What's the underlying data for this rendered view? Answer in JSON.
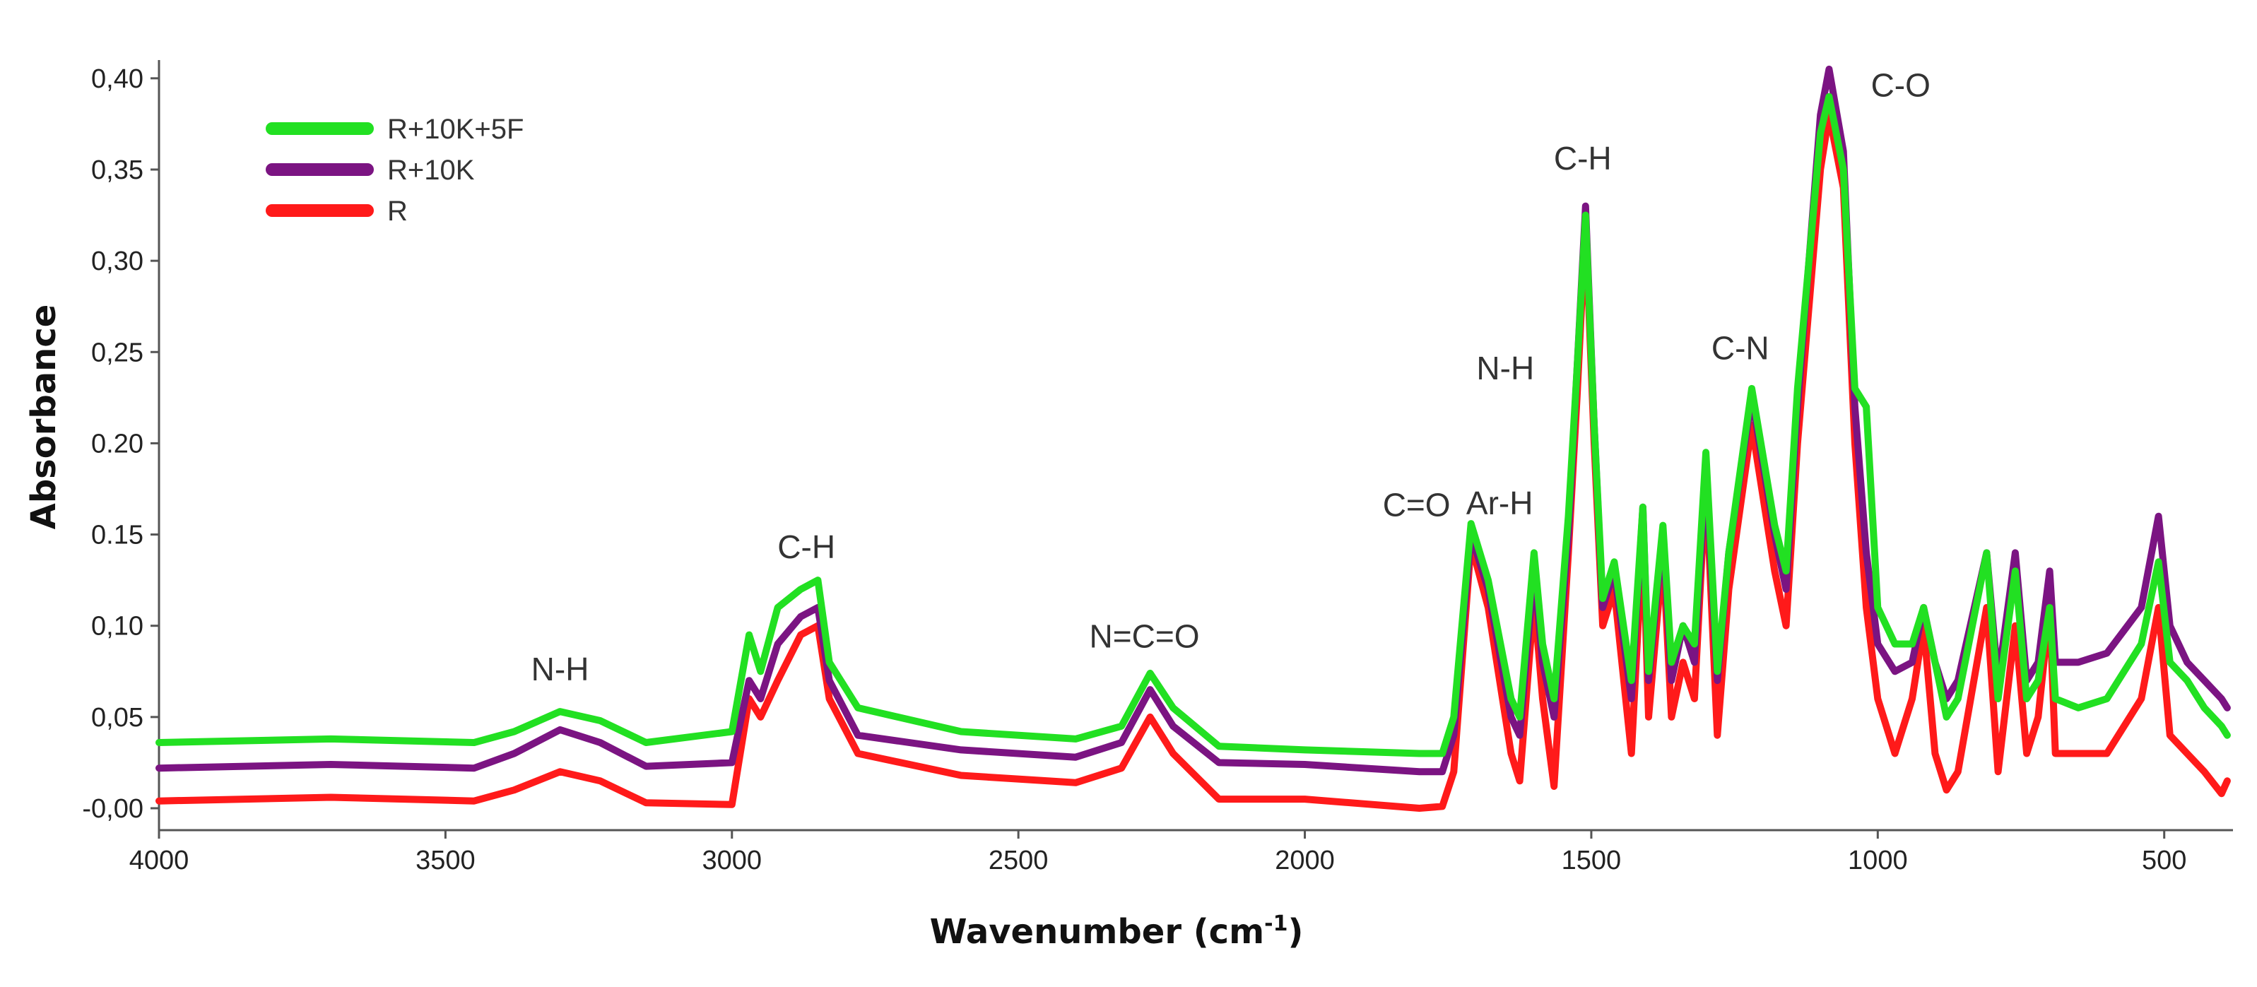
{
  "chart_data": {
    "type": "line",
    "xlabel": "Wavenumber (cm",
    "xlabel_sup": "-1",
    "xlabel_close": ")",
    "ylabel": "Absorbance",
    "xlim": [
      4000,
      380
    ],
    "ylim": [
      -0.012,
      0.41
    ],
    "x_reversed": true,
    "grid": false,
    "legend_position": "top-left",
    "x_ticks": [
      {
        "value": 4000,
        "label": "4000"
      },
      {
        "value": 3500,
        "label": "3500"
      },
      {
        "value": 3000,
        "label": "3000"
      },
      {
        "value": 2500,
        "label": "2500"
      },
      {
        "value": 2000,
        "label": "2000"
      },
      {
        "value": 1500,
        "label": "1500"
      },
      {
        "value": 1000,
        "label": "1000"
      },
      {
        "value": 500,
        "label": "500"
      }
    ],
    "y_ticks": [
      {
        "value": 0.0,
        "label": "-0,00"
      },
      {
        "value": 0.05,
        "label": "0,05"
      },
      {
        "value": 0.1,
        "label": "0,10"
      },
      {
        "value": 0.15,
        "label": "0.15"
      },
      {
        "value": 0.2,
        "label": "0.20"
      },
      {
        "value": 0.25,
        "label": "0,25"
      },
      {
        "value": 0.3,
        "label": "0,30"
      },
      {
        "value": 0.35,
        "label": "0,35"
      },
      {
        "value": 0.4,
        "label": "0,40"
      }
    ],
    "series": [
      {
        "name": "R",
        "color": "#ff1a1a",
        "points": [
          [
            4000,
            0.004
          ],
          [
            3700,
            0.006
          ],
          [
            3450,
            0.004
          ],
          [
            3380,
            0.01
          ],
          [
            3300,
            0.02
          ],
          [
            3230,
            0.015
          ],
          [
            3150,
            0.003
          ],
          [
            3000,
            0.002
          ],
          [
            2970,
            0.06
          ],
          [
            2950,
            0.05
          ],
          [
            2920,
            0.07
          ],
          [
            2880,
            0.095
          ],
          [
            2850,
            0.1
          ],
          [
            2830,
            0.06
          ],
          [
            2780,
            0.03
          ],
          [
            2600,
            0.018
          ],
          [
            2400,
            0.014
          ],
          [
            2320,
            0.022
          ],
          [
            2270,
            0.05
          ],
          [
            2230,
            0.03
          ],
          [
            2150,
            0.005
          ],
          [
            2000,
            0.005
          ],
          [
            1800,
            0.0
          ],
          [
            1760,
            0.001
          ],
          [
            1740,
            0.02
          ],
          [
            1710,
            0.145
          ],
          [
            1680,
            0.11
          ],
          [
            1640,
            0.03
          ],
          [
            1625,
            0.015
          ],
          [
            1600,
            0.115
          ],
          [
            1585,
            0.06
          ],
          [
            1565,
            0.012
          ],
          [
            1540,
            0.14
          ],
          [
            1525,
            0.225
          ],
          [
            1510,
            0.32
          ],
          [
            1495,
            0.2
          ],
          [
            1480,
            0.1
          ],
          [
            1460,
            0.12
          ],
          [
            1430,
            0.03
          ],
          [
            1410,
            0.15
          ],
          [
            1400,
            0.05
          ],
          [
            1375,
            0.14
          ],
          [
            1360,
            0.05
          ],
          [
            1340,
            0.08
          ],
          [
            1320,
            0.06
          ],
          [
            1300,
            0.18
          ],
          [
            1280,
            0.04
          ],
          [
            1260,
            0.12
          ],
          [
            1220,
            0.21
          ],
          [
            1180,
            0.13
          ],
          [
            1160,
            0.1
          ],
          [
            1140,
            0.2
          ],
          [
            1100,
            0.35
          ],
          [
            1085,
            0.38
          ],
          [
            1060,
            0.34
          ],
          [
            1040,
            0.2
          ],
          [
            1020,
            0.11
          ],
          [
            1000,
            0.06
          ],
          [
            970,
            0.03
          ],
          [
            940,
            0.06
          ],
          [
            920,
            0.1
          ],
          [
            900,
            0.03
          ],
          [
            880,
            0.01
          ],
          [
            860,
            0.02
          ],
          [
            810,
            0.11
          ],
          [
            790,
            0.02
          ],
          [
            760,
            0.1
          ],
          [
            740,
            0.03
          ],
          [
            720,
            0.05
          ],
          [
            700,
            0.11
          ],
          [
            690,
            0.03
          ],
          [
            650,
            0.03
          ],
          [
            600,
            0.03
          ],
          [
            540,
            0.06
          ],
          [
            510,
            0.11
          ],
          [
            490,
            0.04
          ],
          [
            460,
            0.03
          ],
          [
            430,
            0.02
          ],
          [
            400,
            0.008
          ],
          [
            390,
            0.015
          ]
        ]
      },
      {
        "name": "R+10K",
        "color": "#7b1482",
        "points": [
          [
            4000,
            0.022
          ],
          [
            3700,
            0.024
          ],
          [
            3450,
            0.022
          ],
          [
            3380,
            0.03
          ],
          [
            3300,
            0.043
          ],
          [
            3230,
            0.036
          ],
          [
            3150,
            0.023
          ],
          [
            3000,
            0.025
          ],
          [
            2970,
            0.07
          ],
          [
            2950,
            0.06
          ],
          [
            2920,
            0.09
          ],
          [
            2880,
            0.105
          ],
          [
            2850,
            0.11
          ],
          [
            2830,
            0.07
          ],
          [
            2780,
            0.04
          ],
          [
            2600,
            0.032
          ],
          [
            2400,
            0.028
          ],
          [
            2320,
            0.036
          ],
          [
            2270,
            0.065
          ],
          [
            2230,
            0.045
          ],
          [
            2150,
            0.025
          ],
          [
            2000,
            0.024
          ],
          [
            1800,
            0.02
          ],
          [
            1760,
            0.02
          ],
          [
            1740,
            0.04
          ],
          [
            1710,
            0.15
          ],
          [
            1680,
            0.12
          ],
          [
            1640,
            0.05
          ],
          [
            1625,
            0.04
          ],
          [
            1600,
            0.13
          ],
          [
            1585,
            0.08
          ],
          [
            1565,
            0.05
          ],
          [
            1540,
            0.15
          ],
          [
            1525,
            0.24
          ],
          [
            1510,
            0.33
          ],
          [
            1495,
            0.21
          ],
          [
            1480,
            0.11
          ],
          [
            1460,
            0.13
          ],
          [
            1430,
            0.06
          ],
          [
            1410,
            0.165
          ],
          [
            1400,
            0.07
          ],
          [
            1375,
            0.15
          ],
          [
            1360,
            0.07
          ],
          [
            1340,
            0.1
          ],
          [
            1320,
            0.08
          ],
          [
            1300,
            0.185
          ],
          [
            1280,
            0.07
          ],
          [
            1260,
            0.14
          ],
          [
            1220,
            0.225
          ],
          [
            1180,
            0.15
          ],
          [
            1160,
            0.12
          ],
          [
            1140,
            0.22
          ],
          [
            1100,
            0.38
          ],
          [
            1085,
            0.405
          ],
          [
            1060,
            0.36
          ],
          [
            1040,
            0.22
          ],
          [
            1020,
            0.14
          ],
          [
            1000,
            0.09
          ],
          [
            970,
            0.075
          ],
          [
            940,
            0.08
          ],
          [
            920,
            0.11
          ],
          [
            900,
            0.08
          ],
          [
            880,
            0.06
          ],
          [
            860,
            0.07
          ],
          [
            810,
            0.14
          ],
          [
            790,
            0.07
          ],
          [
            760,
            0.14
          ],
          [
            740,
            0.07
          ],
          [
            720,
            0.08
          ],
          [
            700,
            0.13
          ],
          [
            690,
            0.08
          ],
          [
            650,
            0.08
          ],
          [
            600,
            0.085
          ],
          [
            540,
            0.11
          ],
          [
            510,
            0.16
          ],
          [
            490,
            0.1
          ],
          [
            460,
            0.08
          ],
          [
            430,
            0.07
          ],
          [
            400,
            0.06
          ],
          [
            390,
            0.055
          ]
        ]
      },
      {
        "name": "R+10K+5F",
        "color": "#22e022",
        "points": [
          [
            4000,
            0.036
          ],
          [
            3700,
            0.038
          ],
          [
            3450,
            0.036
          ],
          [
            3380,
            0.042
          ],
          [
            3300,
            0.053
          ],
          [
            3230,
            0.048
          ],
          [
            3150,
            0.036
          ],
          [
            3000,
            0.042
          ],
          [
            2970,
            0.095
          ],
          [
            2950,
            0.075
          ],
          [
            2920,
            0.11
          ],
          [
            2880,
            0.12
          ],
          [
            2850,
            0.125
          ],
          [
            2830,
            0.08
          ],
          [
            2780,
            0.055
          ],
          [
            2600,
            0.042
          ],
          [
            2400,
            0.038
          ],
          [
            2320,
            0.045
          ],
          [
            2270,
            0.074
          ],
          [
            2230,
            0.055
          ],
          [
            2150,
            0.034
          ],
          [
            2000,
            0.032
          ],
          [
            1800,
            0.03
          ],
          [
            1760,
            0.03
          ],
          [
            1740,
            0.05
          ],
          [
            1710,
            0.156
          ],
          [
            1680,
            0.125
          ],
          [
            1640,
            0.06
          ],
          [
            1625,
            0.05
          ],
          [
            1600,
            0.14
          ],
          [
            1585,
            0.09
          ],
          [
            1565,
            0.06
          ],
          [
            1540,
            0.16
          ],
          [
            1525,
            0.24
          ],
          [
            1510,
            0.325
          ],
          [
            1495,
            0.21
          ],
          [
            1480,
            0.115
          ],
          [
            1460,
            0.135
          ],
          [
            1430,
            0.07
          ],
          [
            1410,
            0.165
          ],
          [
            1400,
            0.075
          ],
          [
            1375,
            0.155
          ],
          [
            1360,
            0.08
          ],
          [
            1340,
            0.1
          ],
          [
            1320,
            0.09
          ],
          [
            1300,
            0.195
          ],
          [
            1280,
            0.075
          ],
          [
            1260,
            0.14
          ],
          [
            1220,
            0.23
          ],
          [
            1180,
            0.155
          ],
          [
            1160,
            0.13
          ],
          [
            1140,
            0.23
          ],
          [
            1100,
            0.37
          ],
          [
            1085,
            0.39
          ],
          [
            1060,
            0.35
          ],
          [
            1040,
            0.23
          ],
          [
            1020,
            0.22
          ],
          [
            1000,
            0.11
          ],
          [
            970,
            0.09
          ],
          [
            940,
            0.09
          ],
          [
            920,
            0.11
          ],
          [
            900,
            0.08
          ],
          [
            880,
            0.05
          ],
          [
            860,
            0.06
          ],
          [
            810,
            0.14
          ],
          [
            790,
            0.06
          ],
          [
            760,
            0.13
          ],
          [
            740,
            0.06
          ],
          [
            720,
            0.07
          ],
          [
            700,
            0.11
          ],
          [
            690,
            0.06
          ],
          [
            650,
            0.055
          ],
          [
            600,
            0.06
          ],
          [
            540,
            0.09
          ],
          [
            510,
            0.135
          ],
          [
            490,
            0.08
          ],
          [
            460,
            0.07
          ],
          [
            430,
            0.055
          ],
          [
            400,
            0.045
          ],
          [
            390,
            0.04
          ]
        ]
      }
    ],
    "legend": [
      {
        "label": "R+10K+5F",
        "color": "#22e022"
      },
      {
        "label": "R+10K",
        "color": "#7b1482"
      },
      {
        "label": "R",
        "color": "#ff1a1a"
      }
    ],
    "annotations": [
      {
        "text": "N-H",
        "x": 3300,
        "y": 0.07
      },
      {
        "text": "C-H",
        "x": 2870,
        "y": 0.137
      },
      {
        "text": "N=C=O",
        "x": 2280,
        "y": 0.088
      },
      {
        "text": "C=O",
        "x": 1805,
        "y": 0.16
      },
      {
        "text": "Ar-H",
        "x": 1660,
        "y": 0.161
      },
      {
        "text": "N-H",
        "x": 1650,
        "y": 0.235
      },
      {
        "text": "C-H",
        "x": 1515,
        "y": 0.35
      },
      {
        "text": "C-N",
        "x": 1240,
        "y": 0.246
      },
      {
        "text": "C-O",
        "x": 960,
        "y": 0.39
      }
    ]
  }
}
